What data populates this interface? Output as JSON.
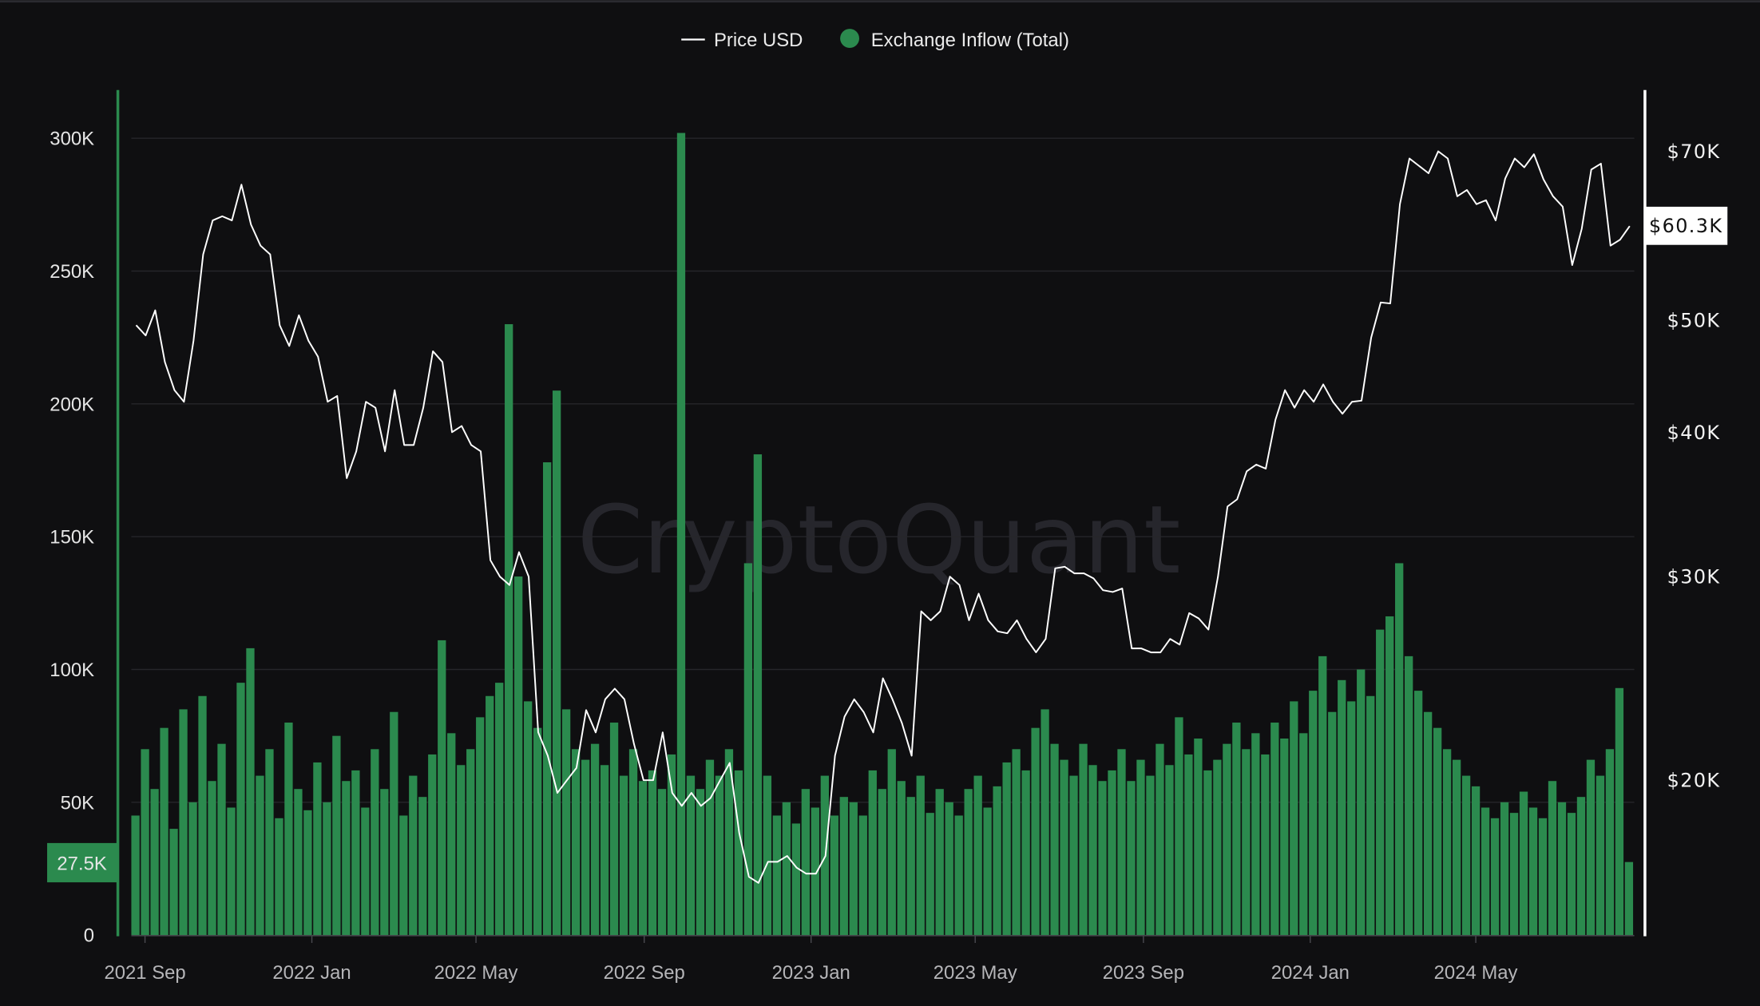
{
  "watermark": "CryptoQuant",
  "colors": {
    "background": "#0f0f11",
    "price": "#ffffff",
    "inflow": "#2b8a4e",
    "grid": "#26262a"
  },
  "chart_data": {
    "type": "bar+line",
    "legend": {
      "placement": "top-center",
      "items": [
        {
          "label": "Price USD",
          "icon": "line"
        },
        {
          "label": "Exchange Inflow (Total)",
          "icon": "circle"
        }
      ]
    },
    "grid": true,
    "y_left": {
      "ticks": [
        "0",
        "50K",
        "100K",
        "150K",
        "200K",
        "250K",
        "300K"
      ],
      "tick_values": [
        0,
        50000,
        100000,
        150000,
        200000,
        250000,
        300000
      ],
      "range": [
        0,
        300000
      ],
      "current_label": "27.5K"
    },
    "y_right": {
      "scale": "log",
      "ticks": [
        "$20K",
        "$30K",
        "$40K",
        "$50K",
        "$70K"
      ],
      "tick_values": [
        20000,
        30000,
        40000,
        50000,
        70000
      ],
      "current_label": "$60.3K",
      "current_value": 60300
    },
    "x_ticks": [
      {
        "label": "2021 Sep",
        "date": "2021-09-01"
      },
      {
        "label": "2022 Jan",
        "date": "2022-01-01"
      },
      {
        "label": "2022 May",
        "date": "2022-05-01"
      },
      {
        "label": "2022 Sep",
        "date": "2022-09-01"
      },
      {
        "label": "2023 Jan",
        "date": "2023-01-01"
      },
      {
        "label": "2023 May",
        "date": "2023-05-01"
      },
      {
        "label": "2023 Sep",
        "date": "2023-09-01"
      },
      {
        "label": "2024 Jan",
        "date": "2024-01-01"
      },
      {
        "label": "2024 May",
        "date": "2024-05-01"
      }
    ],
    "x": [
      "2021-08-22",
      "2021-08-29",
      "2021-09-05",
      "2021-09-12",
      "2021-09-19",
      "2021-09-26",
      "2021-10-03",
      "2021-10-10",
      "2021-10-17",
      "2021-10-24",
      "2021-10-31",
      "2021-11-07",
      "2021-11-14",
      "2021-11-21",
      "2021-11-28",
      "2021-12-05",
      "2021-12-12",
      "2021-12-19",
      "2021-12-26",
      "2022-01-02",
      "2022-01-09",
      "2022-01-16",
      "2022-01-23",
      "2022-01-30",
      "2022-02-06",
      "2022-02-13",
      "2022-02-20",
      "2022-02-27",
      "2022-03-06",
      "2022-03-13",
      "2022-03-20",
      "2022-03-27",
      "2022-04-03",
      "2022-04-10",
      "2022-04-17",
      "2022-04-24",
      "2022-05-01",
      "2022-05-08",
      "2022-05-15",
      "2022-05-22",
      "2022-05-29",
      "2022-06-05",
      "2022-06-12",
      "2022-06-19",
      "2022-06-26",
      "2022-07-03",
      "2022-07-10",
      "2022-07-17",
      "2022-07-24",
      "2022-07-31",
      "2022-08-07",
      "2022-08-14",
      "2022-08-21",
      "2022-08-28",
      "2022-09-04",
      "2022-09-11",
      "2022-09-18",
      "2022-09-25",
      "2022-10-02",
      "2022-10-09",
      "2022-10-16",
      "2022-10-23",
      "2022-10-30",
      "2022-11-06",
      "2022-11-13",
      "2022-11-20",
      "2022-11-27",
      "2022-12-04",
      "2022-12-11",
      "2022-12-18",
      "2022-12-25",
      "2023-01-01",
      "2023-01-08",
      "2023-01-15",
      "2023-01-22",
      "2023-01-29",
      "2023-02-05",
      "2023-02-12",
      "2023-02-19",
      "2023-02-26",
      "2023-03-05",
      "2023-03-12",
      "2023-03-19",
      "2023-03-26",
      "2023-04-02",
      "2023-04-09",
      "2023-04-16",
      "2023-04-23",
      "2023-04-30",
      "2023-05-07",
      "2023-05-14",
      "2023-05-21",
      "2023-05-28",
      "2023-06-04",
      "2023-06-11",
      "2023-06-18",
      "2023-06-25",
      "2023-07-02",
      "2023-07-09",
      "2023-07-16",
      "2023-07-23",
      "2023-07-30",
      "2023-08-06",
      "2023-08-13",
      "2023-08-20",
      "2023-08-27",
      "2023-09-03",
      "2023-09-10",
      "2023-09-17",
      "2023-09-24",
      "2023-10-01",
      "2023-10-08",
      "2023-10-15",
      "2023-10-22",
      "2023-10-29",
      "2023-11-05",
      "2023-11-12",
      "2023-11-19",
      "2023-11-26",
      "2023-12-03",
      "2023-12-10",
      "2023-12-17",
      "2023-12-24",
      "2023-12-31",
      "2024-01-07",
      "2024-01-14",
      "2024-01-21",
      "2024-01-28",
      "2024-02-04",
      "2024-02-11",
      "2024-02-18",
      "2024-02-25",
      "2024-03-03",
      "2024-03-10",
      "2024-03-17",
      "2024-03-24",
      "2024-03-31",
      "2024-04-07",
      "2024-04-14",
      "2024-04-21",
      "2024-04-28",
      "2024-05-05",
      "2024-05-12",
      "2024-05-19",
      "2024-05-26",
      "2024-06-02",
      "2024-06-09",
      "2024-06-16",
      "2024-06-23",
      "2024-06-30",
      "2024-07-07",
      "2024-07-14",
      "2024-07-21",
      "2024-07-28",
      "2024-08-04",
      "2024-08-11",
      "2024-08-18"
    ],
    "series": [
      {
        "name": "Price USD",
        "type": "line",
        "axis": "right",
        "values": [
          49500,
          48500,
          51000,
          46000,
          43500,
          42500,
          48000,
          57000,
          61000,
          61500,
          61000,
          65500,
          60500,
          58000,
          57000,
          49500,
          47500,
          50500,
          48000,
          46500,
          42500,
          43000,
          36500,
          38500,
          42500,
          42000,
          38500,
          43500,
          39000,
          39000,
          42000,
          47000,
          46000,
          40000,
          40500,
          39000,
          38500,
          31000,
          30000,
          29500,
          31500,
          30000,
          22000,
          21000,
          19500,
          20000,
          20500,
          23000,
          22000,
          23500,
          24000,
          23500,
          21500,
          20000,
          20000,
          22000,
          19500,
          19000,
          19500,
          19000,
          19300,
          20000,
          20700,
          18000,
          16500,
          16300,
          17000,
          17000,
          17200,
          16800,
          16600,
          16600,
          17200,
          21000,
          22700,
          23500,
          22900,
          22000,
          24500,
          23500,
          22400,
          21000,
          28000,
          27500,
          28000,
          30000,
          29500,
          27500,
          29000,
          27500,
          26900,
          26800,
          27500,
          26500,
          25800,
          26500,
          30500,
          30600,
          30200,
          30200,
          29900,
          29200,
          29100,
          29300,
          26000,
          26000,
          25800,
          25800,
          26500,
          26200,
          27900,
          27600,
          27000,
          30000,
          34500,
          35000,
          37000,
          37500,
          37200,
          41000,
          43500,
          42000,
          43500,
          42500,
          44000,
          42500,
          41500,
          42500,
          42600,
          48300,
          51800,
          51700,
          63000,
          69000,
          68000,
          67000,
          70000,
          69000,
          64000,
          64800,
          63000,
          63500,
          61000,
          66300,
          69000,
          67800,
          69600,
          66200,
          64000,
          62700,
          55800,
          60000,
          67500,
          68300,
          58000,
          58700,
          60300
        ]
      },
      {
        "name": "Exchange Inflow (Total)",
        "type": "bar",
        "axis": "left",
        "values": [
          45000,
          70000,
          55000,
          78000,
          40000,
          85000,
          50000,
          90000,
          58000,
          72000,
          48000,
          95000,
          108000,
          60000,
          70000,
          44000,
          80000,
          55000,
          47000,
          65000,
          50000,
          75000,
          58000,
          62000,
          48000,
          70000,
          55000,
          84000,
          45000,
          60000,
          52000,
          68000,
          111000,
          76000,
          64000,
          70000,
          82000,
          90000,
          95000,
          230000,
          135000,
          88000,
          78000,
          178000,
          205000,
          85000,
          70000,
          66000,
          72000,
          64000,
          80000,
          60000,
          70000,
          58000,
          62000,
          55000,
          68000,
          302000,
          60000,
          55000,
          66000,
          60000,
          70000,
          62000,
          140000,
          181000,
          60000,
          45000,
          50000,
          42000,
          55000,
          48000,
          60000,
          45000,
          52000,
          50000,
          45000,
          62000,
          55000,
          70000,
          58000,
          52000,
          60000,
          46000,
          55000,
          50000,
          45000,
          55000,
          60000,
          48000,
          56000,
          65000,
          70000,
          62000,
          78000,
          85000,
          72000,
          66000,
          60000,
          72000,
          64000,
          58000,
          62000,
          70000,
          58000,
          66000,
          60000,
          72000,
          64000,
          82000,
          68000,
          74000,
          62000,
          66000,
          72000,
          80000,
          70000,
          76000,
          68000,
          80000,
          74000,
          88000,
          76000,
          92000,
          105000,
          84000,
          96000,
          88000,
          100000,
          90000,
          115000,
          120000,
          140000,
          105000,
          92000,
          84000,
          78000,
          70000,
          66000,
          60000,
          56000,
          48000,
          44000,
          50000,
          46000,
          54000,
          48000,
          44000,
          58000,
          50000,
          46000,
          52000,
          66000,
          60000,
          70000,
          93000,
          27500
        ]
      }
    ]
  }
}
